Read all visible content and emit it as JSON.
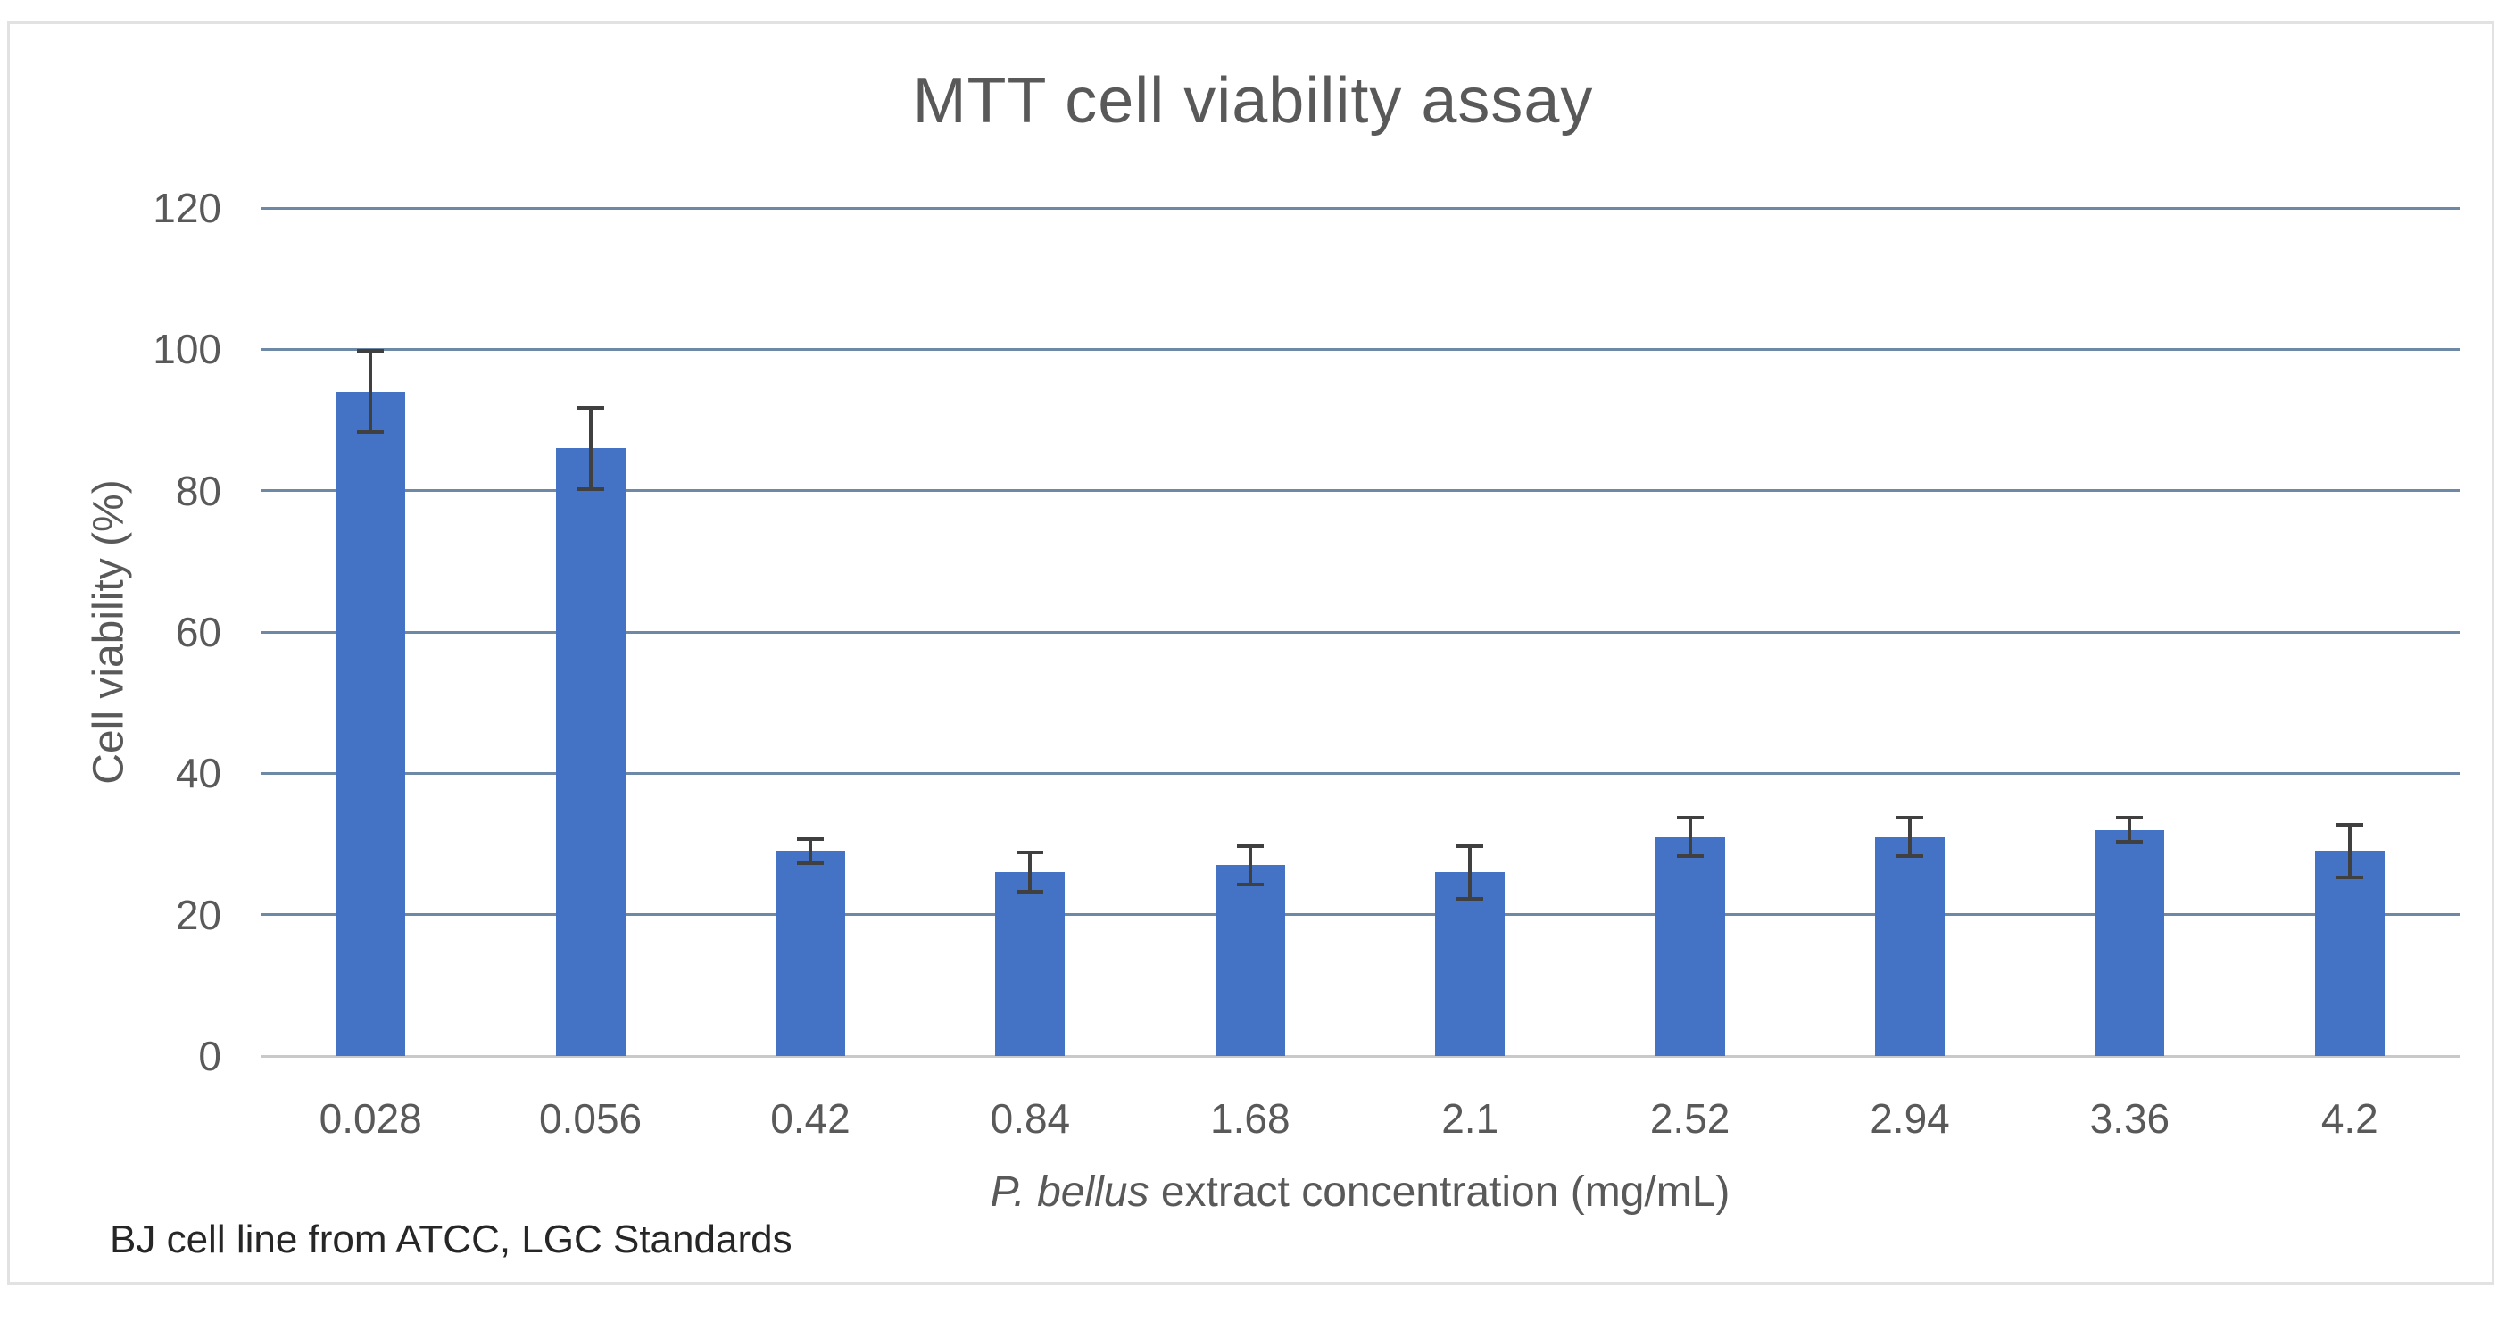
{
  "chart": {
    "title": "MTT cell viability assay",
    "y_axis": {
      "title": "Cell viability (%)",
      "tick_labels": [
        "0",
        "20",
        "40",
        "60",
        "80",
        "100",
        "120"
      ]
    },
    "x_axis": {
      "title_italic": "P. bellus",
      "title_rest": " extract concentration (mg/mL)"
    },
    "footnote": "BJ cell line from ATCC, LGC Standards",
    "colors": {
      "bar": "#4472C4",
      "gridline": "#6e89a6",
      "zero_axis_line": "#c9c9c9",
      "error_bar": "#404040",
      "text": "#595959",
      "footnote_text": "#262626",
      "border": "#e2e2e2"
    }
  },
  "chart_data": {
    "type": "bar",
    "title": "MTT cell viability assay",
    "categories": [
      "0.028",
      "0.056",
      "0.42",
      "0.84",
      "1.68",
      "2.1",
      "2.52",
      "2.94",
      "3.36",
      "4.2"
    ],
    "values": [
      94,
      86,
      29,
      26,
      27,
      26,
      31,
      31,
      32,
      29
    ],
    "errors": [
      6,
      6,
      2,
      3,
      3,
      4,
      3,
      3,
      2,
      4
    ],
    "xlabel": "P. bellus extract concentration (mg/mL)",
    "ylabel": "Cell viability (%)",
    "ylim": [
      0,
      120
    ],
    "ytick_step": 20,
    "grid": "horizontal",
    "legend": "none",
    "error_bars": "plus-minus",
    "annotation": "BJ cell line from ATCC, LGC Standards"
  }
}
